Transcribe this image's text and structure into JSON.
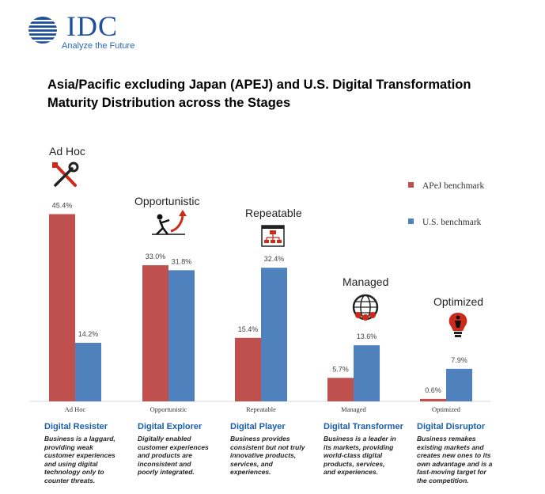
{
  "logo": {
    "text": "IDC",
    "tagline": "Analyze the Future"
  },
  "title_line1": "Asia/Pacific excluding Japan (APEJ) and U.S. Digital Transformation",
  "title_line2": "Maturity Distribution across the Stages",
  "colors": {
    "apej": "#c0504d",
    "us": "#4f81bd",
    "accent_blue": "#1a5ea8"
  },
  "chart_data": {
    "type": "bar",
    "title": "Asia/Pacific excluding Japan (APEJ) and U.S. Digital Transformation Maturity Distribution across the Stages",
    "categories": [
      "Ad Hoc",
      "Opportunistic",
      "Repeatable",
      "Managed",
      "Optimized"
    ],
    "stage_headers": [
      "Ad Hoc",
      "Opportunistic",
      "Repeatable",
      "Managed",
      "Optimized"
    ],
    "series": [
      {
        "name": "APeJ benchmark",
        "values": [
          45.4,
          33.0,
          15.4,
          5.7,
          0.6
        ],
        "labels": [
          "45.4%",
          "33.0%",
          "15.4%",
          "5.7%",
          "0.6%"
        ]
      },
      {
        "name": "U.S. benchmark",
        "values": [
          14.2,
          31.8,
          32.4,
          13.6,
          7.9
        ],
        "labels": [
          "14.2%",
          "31.8%",
          "32.4%",
          "13.6%",
          "7.9%"
        ]
      }
    ],
    "ylim": [
      0,
      50
    ],
    "grid": false,
    "legend": "top-right"
  },
  "stage_icons": [
    "tools-icon",
    "climber-icon",
    "flowchart-icon",
    "network-globe-icon",
    "lightbulb-person-icon"
  ],
  "descriptions": [
    {
      "title": "Digital Resister",
      "lines": [
        "Business  is a laggard,",
        "providing weak",
        "customer experiences",
        "and using digital",
        "technology only to",
        "counter threats."
      ]
    },
    {
      "title": "Digital Explorer",
      "lines": [
        "Digitally enabled",
        "customer experiences",
        "and products  are",
        "inconsistent  and",
        "poorly integrated."
      ]
    },
    {
      "title": "Digital Player",
      "lines": [
        "Business  provides",
        "consistent  but not truly",
        "innovative products,",
        "services,  and",
        "experiences."
      ]
    },
    {
      "title": "Digital Transformer",
      "lines": [
        "Business  is a leader in",
        "its markets, providing",
        "world-class  digital",
        "products, services,",
        "and experiences."
      ]
    },
    {
      "title": "Digital Disruptor",
      "lines": [
        "Business  remakes",
        "existing markets and",
        "creates new ones to its",
        "own advantage and is a",
        "fast-moving target for",
        "the competition."
      ]
    }
  ]
}
